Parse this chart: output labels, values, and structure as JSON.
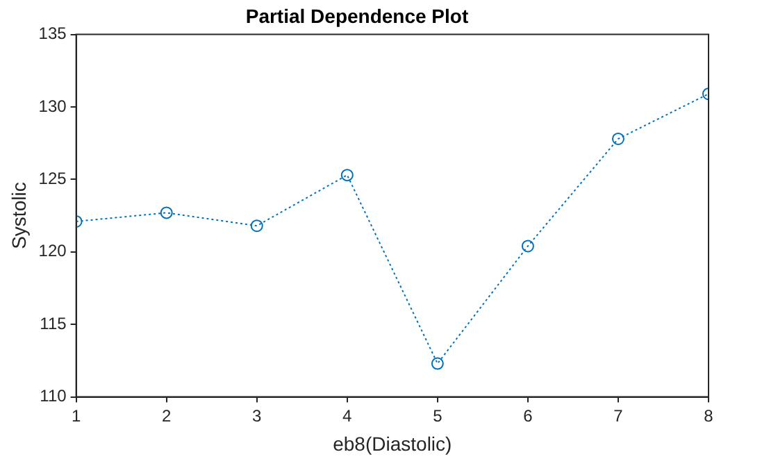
{
  "chart_data": {
    "type": "line",
    "title": "Partial Dependence Plot",
    "xlabel": "eb8(Diastolic)",
    "ylabel": "Systolic",
    "x": [
      1,
      2,
      3,
      4,
      5,
      6,
      7,
      8
    ],
    "series": [
      {
        "color": "#0072bd",
        "values": [
          122.1,
          122.7,
          121.8,
          125.3,
          112.3,
          120.4,
          127.8,
          130.9
        ]
      }
    ],
    "xlim": [
      1,
      8
    ],
    "xticks": [
      1,
      2,
      3,
      4,
      5,
      6,
      7,
      8
    ],
    "ylim": [
      110,
      135
    ],
    "yticks": [
      110,
      115,
      120,
      125,
      130,
      135
    ],
    "grid": false,
    "legend": false,
    "marker": "circle",
    "line_style": "dotted"
  }
}
